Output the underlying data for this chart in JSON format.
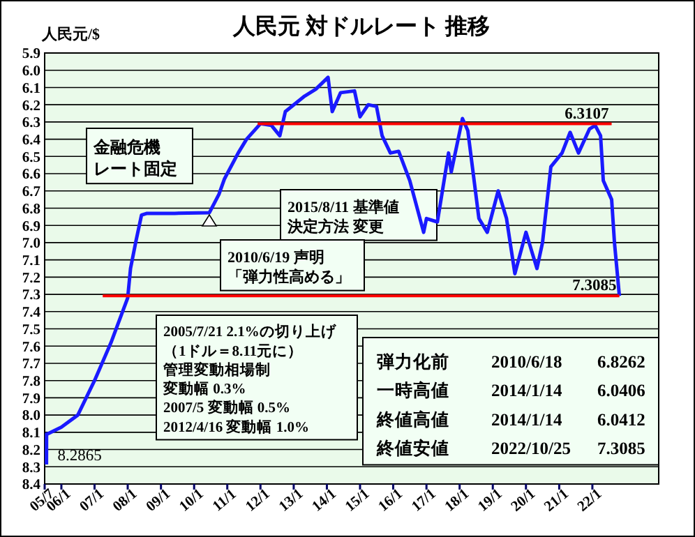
{
  "chart_data": {
    "type": "line",
    "title": "人民元 対ドルレート 推移",
    "ylabel": "人民元/$",
    "xlim": [
      "2005-07",
      "2024-01"
    ],
    "xticks": [
      {
        "value": "2005-07",
        "label": "05/7"
      },
      {
        "value": "2006-01",
        "label": "06/1"
      },
      {
        "value": "2007-01",
        "label": "07/1"
      },
      {
        "value": "2008-01",
        "label": "08/1"
      },
      {
        "value": "2009-01",
        "label": "09/1"
      },
      {
        "value": "2010-01",
        "label": "10/1"
      },
      {
        "value": "2011-01",
        "label": "11/1"
      },
      {
        "value": "2012-01",
        "label": "12/1"
      },
      {
        "value": "2013-01",
        "label": "13/1"
      },
      {
        "value": "2014-01",
        "label": "14/1"
      },
      {
        "value": "2015-01",
        "label": "15/1"
      },
      {
        "value": "2016-01",
        "label": "16/1"
      },
      {
        "value": "2017-01",
        "label": "17/1"
      },
      {
        "value": "2018-01",
        "label": "18/1"
      },
      {
        "value": "2019-01",
        "label": "19/1"
      },
      {
        "value": "2020-01",
        "label": "20/1"
      },
      {
        "value": "2021-01",
        "label": "21/1"
      },
      {
        "value": "2022-01",
        "label": "22/1"
      }
    ],
    "ylim": [
      8.4,
      5.9
    ],
    "yticks": [
      5.9,
      {
        "value": 6,
        "label": "6.0"
      },
      6.1,
      6.2,
      6.3,
      6.4,
      6.5,
      6.6,
      6.7,
      6.8,
      6.9,
      {
        "value": 7,
        "label": "7.0"
      },
      7.1,
      7.2,
      7.3,
      7.4,
      7.5,
      7.6,
      7.7,
      7.8,
      7.9,
      {
        "value": 8,
        "label": "8.0"
      },
      8.1,
      8.2,
      8.3,
      8.4
    ],
    "grid": "y",
    "marker": "none",
    "line_style": "solid",
    "series": [
      {
        "color": "#1a1aff",
        "x": [
          "2005-07-21",
          "2005-07-22",
          "2005-08",
          "2006-01",
          "2006-07",
          "2007-01",
          "2007-07",
          "2008-01",
          "2008-02",
          "2008-04",
          "2008-06",
          "2008-08",
          "2009-06",
          "2010-06-18",
          "2010-10",
          "2010-12",
          "2011-05",
          "2011-08",
          "2012-01",
          "2012-05",
          "2012-08",
          "2012-10",
          "2013-05",
          "2013-09",
          "2014-01-14",
          "2014-03",
          "2014-06",
          "2014-11",
          "2015-01",
          "2015-04",
          "2015-07",
          "2015-09",
          "2015-12",
          "2016-03",
          "2016-07",
          "2016-12",
          "2017-01",
          "2017-05",
          "2017-09",
          "2017-10",
          "2018-02",
          "2018-04",
          "2018-08",
          "2018-11",
          "2019-03",
          "2019-06",
          "2019-09",
          "2020-01",
          "2020-05",
          "2020-07",
          "2020-10",
          "2021-02",
          "2021-05",
          "2021-08",
          "2021-12",
          "2022-02",
          "2022-04",
          "2022-05",
          "2022-08",
          "2022-09",
          "2022-10-25"
        ],
        "values": [
          8.2865,
          8.11,
          8.11,
          8.07,
          8.0,
          7.8,
          7.58,
          7.32,
          7.15,
          6.99,
          6.84,
          6.83,
          6.83,
          6.8262,
          6.72,
          6.63,
          6.48,
          6.4,
          6.31,
          6.32,
          6.38,
          6.24,
          6.15,
          6.11,
          6.0412,
          6.24,
          6.13,
          6.12,
          6.27,
          6.2,
          6.21,
          6.38,
          6.48,
          6.47,
          6.64,
          6.94,
          6.86,
          6.88,
          6.48,
          6.59,
          6.28,
          6.35,
          6.86,
          6.94,
          6.7,
          6.86,
          7.18,
          6.94,
          7.15,
          7.0,
          6.56,
          6.48,
          6.36,
          6.48,
          6.34,
          6.32,
          6.38,
          6.64,
          6.75,
          7.0,
          7.3085
        ]
      },
      {
        "name": "6.3107",
        "color": "#ff0000",
        "x": [
          "2011-12",
          "2022-08"
        ],
        "values": [
          6.3107,
          6.3107
        ]
      },
      {
        "name": "7.3085",
        "color": "#ff0000",
        "x": [
          "2007-04",
          "2022-10-25"
        ],
        "values": [
          7.3085,
          7.3085
        ]
      }
    ],
    "annotations": [
      "金融危機",
      "レート固定",
      "2015/8/11 基準値",
      "決定方法 変更",
      "2010/6/19 声明",
      "「弾力性高める」",
      "2005/7/21 2.1%の切り上げ",
      "（1ドル＝8.11元に）",
      "管理変動相場制",
      "変動幅 0.3%",
      "2007/5 変動幅 0.5%",
      "2012/4/16 変動幅 1.0%",
      "弾力化前 2010/6/18 6.8262",
      "一時高値 2014/1/14 6.0406",
      "終値高値 2014/1/14 6.0412",
      "終値安値 2022/10/25 7.3085",
      {
        "text": "8.2865",
        "x": "2005-07-21",
        "y": 8.2865
      }
    ]
  }
}
